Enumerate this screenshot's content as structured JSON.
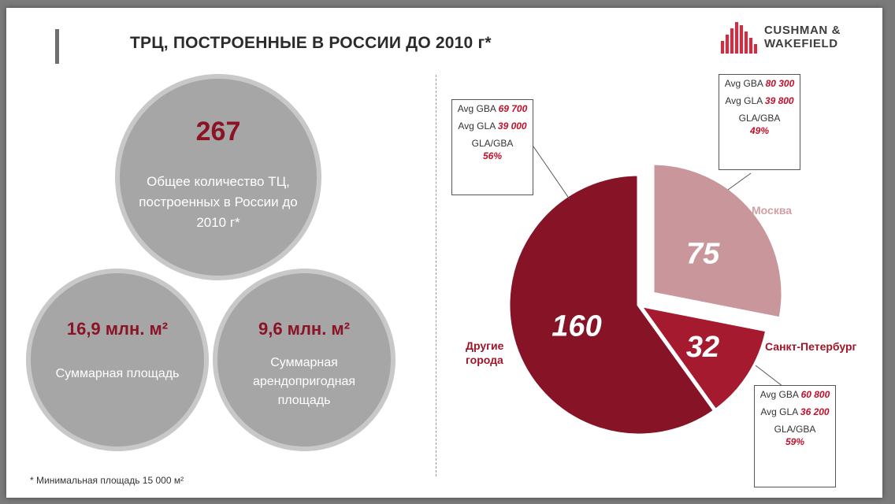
{
  "header": {
    "title": "ТРЦ, ПОСТРОЕННЫЕ В  РОССИИ ДО 2010 г*",
    "logo_line1": "CUSHMAN &",
    "logo_line2": "WAKEFIELD"
  },
  "stats": {
    "total": {
      "value": "267",
      "description": "Общее количество ТЦ, построенных в России до 2010  г*"
    },
    "area": {
      "value": "16,9 млн. м²",
      "description": "Суммарная площадь"
    },
    "gla": {
      "value": "9,6 млн. м²",
      "description": "Суммарная арендопригодная площадь"
    }
  },
  "footnote": "* Минимальная площадь 15 000 м²",
  "chart_data": {
    "type": "pie",
    "slices": [
      {
        "label": "Москва",
        "value": 75,
        "color": "#c9979b"
      },
      {
        "label": "Санкт-Петербург",
        "value": 32,
        "color": "#a51a2e"
      },
      {
        "label": "Другие города",
        "value": 160,
        "color": "#861326"
      }
    ],
    "annotations": [
      {
        "region": "Другие города",
        "avg_gba_label": "Avg GBA",
        "avg_gba": "69 700",
        "avg_gla_label": "Avg GLA",
        "avg_gla": "39 000",
        "ratio_label": "GLA/GBA",
        "ratio": "56%"
      },
      {
        "region": "Москва",
        "avg_gba_label": "Avg GBA",
        "avg_gba": "80 300",
        "avg_gla_label": "Avg GLA",
        "avg_gla": "39 800",
        "ratio_label": "GLA/GBA",
        "ratio": "49%"
      },
      {
        "region": "Санкт-Петербург",
        "avg_gba_label": "Avg GBA",
        "avg_gba": "60 800",
        "avg_gla_label": "Avg GLA",
        "avg_gla": "36 200",
        "ratio_label": "GLA/GBA",
        "ratio": "59%"
      }
    ]
  },
  "labels": {
    "moscow": "Москва",
    "spb": "Санкт-Петербург",
    "other": "Другие города"
  },
  "colors": {
    "accent": "#8b1326",
    "circle_fill": "#a6a6a6",
    "circle_ring": "#c8c8c8",
    "value_red": "#c0102a"
  }
}
